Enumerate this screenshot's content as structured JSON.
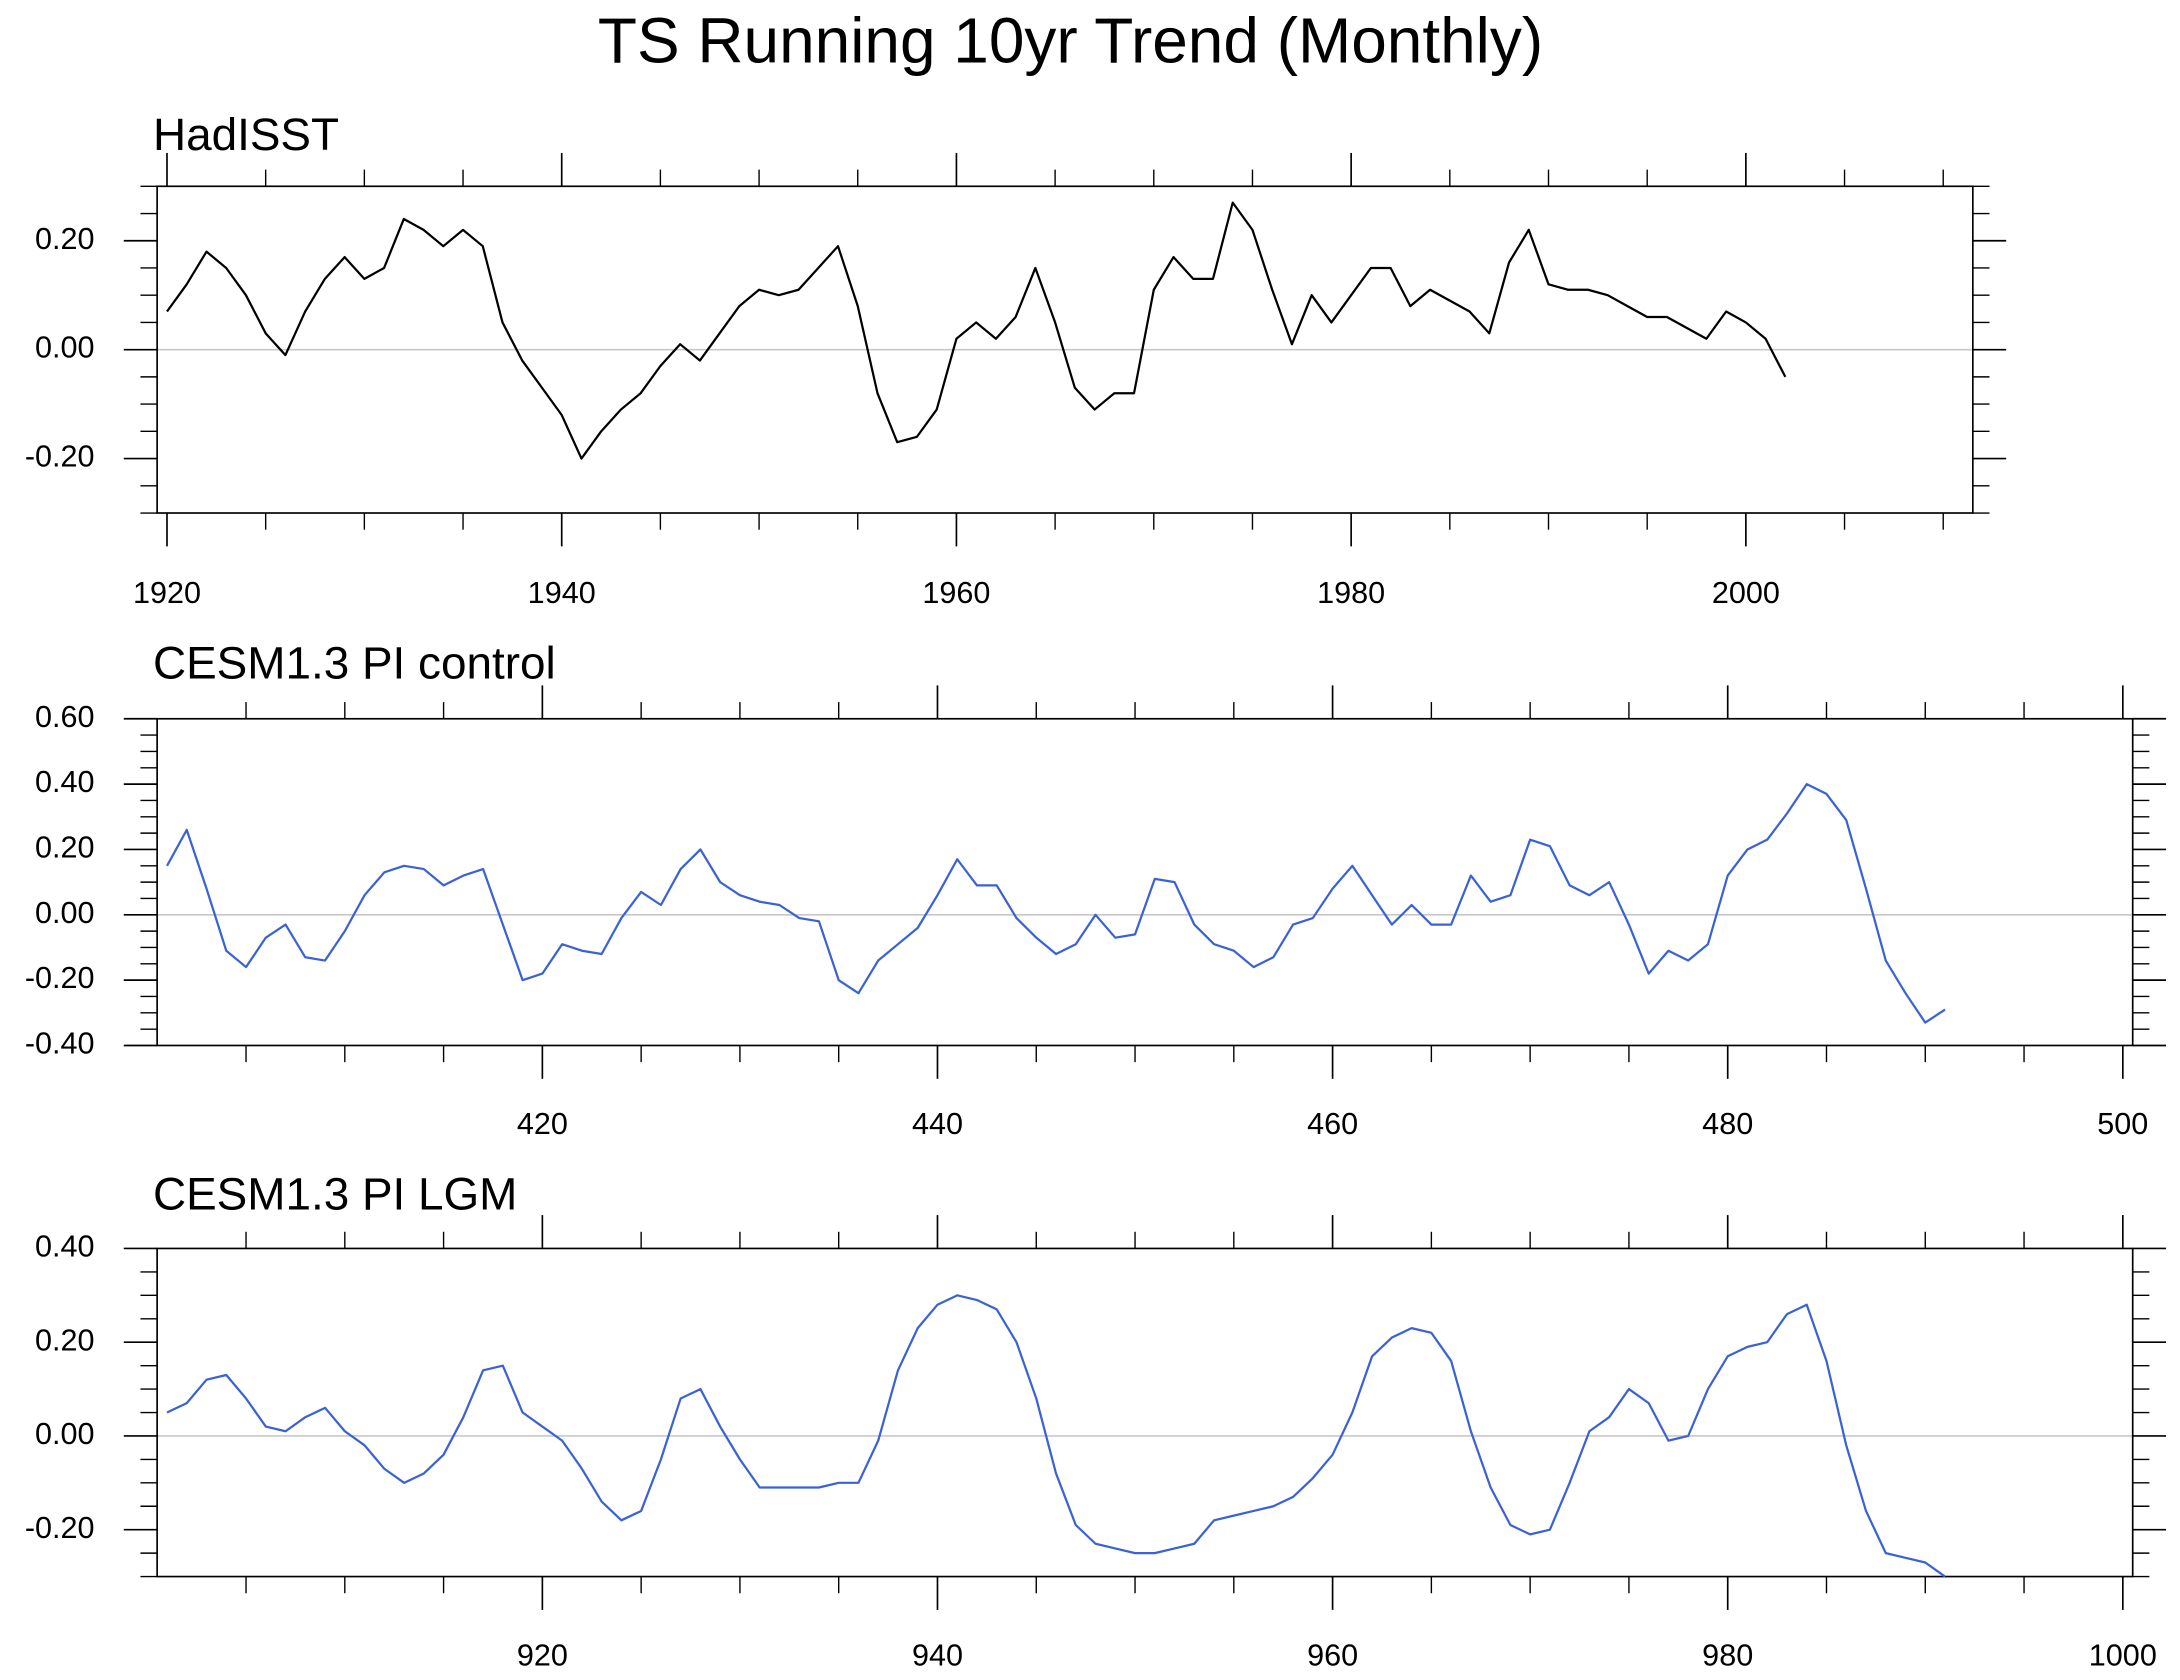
{
  "title": "TS Running 10yr Trend (Monthly)",
  "chart_data": [
    {
      "type": "line",
      "title": "HadISST",
      "x": [
        1920,
        1921,
        1922,
        1923,
        1924,
        1925,
        1926,
        1927,
        1928,
        1929,
        1930,
        1931,
        1932,
        1933,
        1934,
        1935,
        1936,
        1937,
        1938,
        1939,
        1940,
        1941,
        1942,
        1943,
        1944,
        1945,
        1946,
        1947,
        1948,
        1949,
        1950,
        1951,
        1952,
        1953,
        1954,
        1955,
        1956,
        1957,
        1958,
        1959,
        1960,
        1961,
        1962,
        1963,
        1964,
        1965,
        1966,
        1967,
        1968,
        1969,
        1970,
        1971,
        1972,
        1973,
        1974,
        1975,
        1976,
        1977,
        1978,
        1979,
        1980,
        1981,
        1982,
        1983,
        1984,
        1985,
        1986,
        1987,
        1988,
        1989,
        1990,
        1991,
        1992,
        1993,
        1994,
        1995,
        1996,
        1997,
        1998,
        1999,
        2000,
        2001,
        2002
      ],
      "series": [
        {
          "color": "#000000",
          "values": [
            0.07,
            0.12,
            0.18,
            0.15,
            0.1,
            0.03,
            -0.01,
            0.07,
            0.13,
            0.17,
            0.13,
            0.15,
            0.24,
            0.22,
            0.19,
            0.22,
            0.19,
            0.05,
            -0.02,
            -0.07,
            -0.12,
            -0.2,
            -0.15,
            -0.11,
            -0.08,
            -0.03,
            0.01,
            -0.02,
            0.03,
            0.08,
            0.11,
            0.1,
            0.11,
            0.15,
            0.19,
            0.08,
            -0.08,
            -0.17,
            -0.16,
            -0.11,
            0.02,
            0.05,
            0.02,
            0.06,
            0.15,
            0.05,
            -0.07,
            -0.11,
            -0.08,
            -0.08,
            0.11,
            0.17,
            0.13,
            0.13,
            0.27,
            0.22,
            0.11,
            0.01,
            0.1,
            0.05,
            0.1,
            0.15,
            0.15,
            0.08,
            0.11,
            0.09,
            0.07,
            0.03,
            0.16,
            0.22,
            0.12,
            0.11,
            0.11,
            0.1,
            0.08,
            0.06,
            0.06,
            0.04,
            0.02,
            0.07,
            0.05,
            0.02,
            -0.05
          ]
        }
      ],
      "xlim": [
        1919.5,
        2011.5
      ],
      "xticks": [
        1920,
        1940,
        1960,
        1980,
        2000
      ],
      "ylim": [
        -0.3,
        0.3
      ],
      "yticks": [
        {
          "value": -0.2,
          "label": "-0.20"
        },
        {
          "value": 0,
          "label": "0.00"
        },
        {
          "value": 0.2,
          "label": "0.20"
        }
      ],
      "reference_line": 0
    },
    {
      "type": "line",
      "title": "CESM1.3 PI control",
      "x": [
        401,
        402,
        403,
        404,
        405,
        406,
        407,
        408,
        409,
        410,
        411,
        412,
        413,
        414,
        415,
        416,
        417,
        418,
        419,
        420,
        421,
        422,
        423,
        424,
        425,
        426,
        427,
        428,
        429,
        430,
        431,
        432,
        433,
        434,
        435,
        436,
        437,
        438,
        439,
        440,
        441,
        442,
        443,
        444,
        445,
        446,
        447,
        448,
        449,
        450,
        451,
        452,
        453,
        454,
        455,
        456,
        457,
        458,
        459,
        460,
        461,
        462,
        463,
        464,
        465,
        466,
        467,
        468,
        469,
        470,
        471,
        472,
        473,
        474,
        475,
        476,
        477,
        478,
        479,
        480,
        481,
        482,
        483,
        484,
        485,
        486,
        487,
        488,
        489,
        490,
        491
      ],
      "series": [
        {
          "color": "#3a62d6",
          "values": [
            0.15,
            0.26,
            0.08,
            -0.11,
            -0.16,
            -0.07,
            -0.03,
            -0.13,
            -0.14,
            -0.05,
            0.06,
            0.13,
            0.15,
            0.14,
            0.09,
            0.12,
            0.14,
            -0.03,
            -0.2,
            -0.18,
            -0.09,
            -0.11,
            -0.12,
            -0.01,
            0.07,
            0.03,
            0.14,
            0.2,
            0.1,
            0.06,
            0.04,
            0.03,
            -0.01,
            -0.02,
            -0.2,
            -0.24,
            -0.14,
            -0.09,
            -0.04,
            0.06,
            0.17,
            0.09,
            0.09,
            -0.01,
            -0.07,
            -0.12,
            -0.09,
            0.0,
            -0.07,
            -0.06,
            0.11,
            0.1,
            -0.03,
            -0.09,
            -0.11,
            -0.16,
            -0.13,
            -0.03,
            -0.01,
            0.08,
            0.15,
            0.06,
            -0.03,
            0.03,
            -0.03,
            -0.03,
            0.12,
            0.04,
            0.06,
            0.23,
            0.21,
            0.09,
            0.06,
            0.1,
            -0.03,
            -0.18,
            -0.11,
            -0.14,
            -0.09,
            0.12,
            0.2,
            0.23,
            0.31,
            0.4,
            0.37,
            0.29,
            0.08,
            -0.14,
            -0.24,
            -0.33,
            -0.29
          ]
        }
      ],
      "xlim": [
        400.5,
        500.5
      ],
      "xticks": [
        420,
        440,
        460,
        480,
        500
      ],
      "ylim": [
        -0.4,
        0.6
      ],
      "yticks": [
        {
          "value": -0.4,
          "label": "-0.40"
        },
        {
          "value": -0.2,
          "label": "-0.20"
        },
        {
          "value": 0,
          "label": "0.00"
        },
        {
          "value": 0.2,
          "label": "0.20"
        },
        {
          "value": 0.4,
          "label": "0.40"
        },
        {
          "value": 0.6,
          "label": "0.60"
        }
      ],
      "reference_line": 0
    },
    {
      "type": "line",
      "title": "CESM1.3 PI LGM",
      "x": [
        901,
        902,
        903,
        904,
        905,
        906,
        907,
        908,
        909,
        910,
        911,
        912,
        913,
        914,
        915,
        916,
        917,
        918,
        919,
        920,
        921,
        922,
        923,
        924,
        925,
        926,
        927,
        928,
        929,
        930,
        931,
        932,
        933,
        934,
        935,
        936,
        937,
        938,
        939,
        940,
        941,
        942,
        943,
        944,
        945,
        946,
        947,
        948,
        949,
        950,
        951,
        952,
        953,
        954,
        955,
        956,
        957,
        958,
        959,
        960,
        961,
        962,
        963,
        964,
        965,
        966,
        967,
        968,
        969,
        970,
        971,
        972,
        973,
        974,
        975,
        976,
        977,
        978,
        979,
        980,
        981,
        982,
        983,
        984,
        985,
        986,
        987,
        988,
        989,
        990,
        991
      ],
      "series": [
        {
          "color": "#3a62d6",
          "values": [
            0.05,
            0.07,
            0.12,
            0.13,
            0.08,
            0.02,
            0.01,
            0.04,
            0.06,
            0.01,
            -0.02,
            -0.07,
            -0.1,
            -0.08,
            -0.04,
            0.04,
            0.14,
            0.15,
            0.05,
            0.02,
            -0.01,
            -0.07,
            -0.14,
            -0.18,
            -0.16,
            -0.05,
            0.08,
            0.1,
            0.02,
            -0.05,
            -0.11,
            -0.11,
            -0.11,
            -0.11,
            -0.1,
            -0.1,
            -0.01,
            0.14,
            0.23,
            0.28,
            0.3,
            0.29,
            0.27,
            0.2,
            0.08,
            -0.08,
            -0.19,
            -0.23,
            -0.24,
            -0.25,
            -0.25,
            -0.24,
            -0.23,
            -0.18,
            -0.17,
            -0.16,
            -0.15,
            -0.13,
            -0.09,
            -0.04,
            0.05,
            0.17,
            0.21,
            0.23,
            0.22,
            0.16,
            0.01,
            -0.11,
            -0.19,
            -0.21,
            -0.2,
            -0.1,
            0.01,
            0.04,
            0.1,
            0.07,
            -0.01,
            0.0,
            0.1,
            0.17,
            0.19,
            0.2,
            0.26,
            0.28,
            0.16,
            -0.02,
            -0.16,
            -0.25,
            -0.26,
            -0.27,
            -0.3
          ]
        }
      ],
      "xlim": [
        900.5,
        1000.5
      ],
      "xticks": [
        920,
        940,
        960,
        980,
        1000
      ],
      "ylim": [
        -0.3,
        0.4
      ],
      "yticks": [
        {
          "value": -0.2,
          "label": "-0.20"
        },
        {
          "value": 0,
          "label": "0.00"
        },
        {
          "value": 0.2,
          "label": "0.20"
        },
        {
          "value": 0.4,
          "label": "0.40"
        }
      ],
      "reference_line": 0
    }
  ]
}
